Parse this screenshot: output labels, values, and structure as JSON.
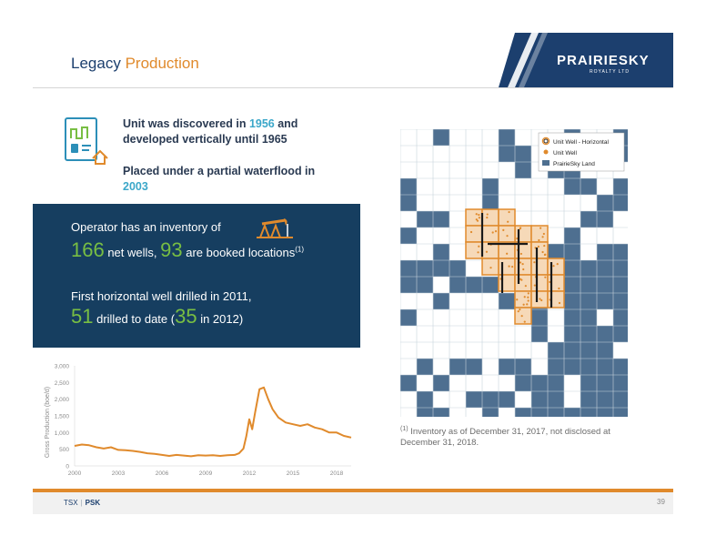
{
  "header": {
    "title_main": "Legacy",
    "title_accent": "Production",
    "logo_text": "PRAIRIESKY",
    "logo_sub": "ROYALTY LTD"
  },
  "intro": {
    "line1_a": "Unit was discovered in ",
    "line1_year": "1956",
    "line1_b": " and developed vertically until ",
    "line1_year2": "1965",
    "line2_a": "Placed under a partial waterflood in ",
    "line2_year": "2003"
  },
  "panel": {
    "l1": "Operator has an inventory of",
    "l2_num1": "166",
    "l2_a": " net wells, ",
    "l2_num2": "93",
    "l2_b": " are booked locations",
    "l2_sup": "(1)",
    "l3": "First horizontal well drilled in 2011,",
    "l4_num1": "51",
    "l4_a": " drilled to date (",
    "l4_num2": "35",
    "l4_b": " in 2012)"
  },
  "map": {
    "legend": [
      "Unit Well - Horizontal",
      "Unit Well",
      "PrairieSky Land"
    ],
    "colors": {
      "land": "#4e6f90",
      "grid": "#c7d2dc",
      "well": "#e08a2c",
      "horizontal": "#e08a2c"
    }
  },
  "footnote": {
    "sup": "(1)",
    "text": " Inventory as of December 31, 2017, not disclosed at December 31, 2018."
  },
  "chart_data": {
    "type": "line",
    "ylabel": "Gross Production (boe/d)",
    "ylim": [
      0,
      3000
    ],
    "yticks": [
      "0",
      "500",
      "1,000",
      "1,500",
      "2,000",
      "2,500",
      "3,000"
    ],
    "xlim": [
      2000,
      2019
    ],
    "xticks": [
      "2000",
      "2003",
      "2006",
      "2009",
      "2012",
      "2015",
      "2018"
    ],
    "color": "#e08a2c",
    "series": [
      {
        "x": [
          2000,
          2000.5,
          2001,
          2001.5,
          2002,
          2002.5,
          2003,
          2003.5,
          2004,
          2004.5,
          2005,
          2005.5,
          2006,
          2006.5,
          2007,
          2007.5,
          2008,
          2008.5,
          2009,
          2009.5,
          2010,
          2010.5,
          2011,
          2011.3,
          2011.6,
          2011.8,
          2012,
          2012.2,
          2012.4,
          2012.7,
          2013,
          2013.3,
          2013.6,
          2014,
          2014.5,
          2015,
          2015.5,
          2016,
          2016.5,
          2017,
          2017.5,
          2018,
          2018.5,
          2019
        ],
        "y": [
          600,
          640,
          620,
          560,
          520,
          560,
          480,
          470,
          450,
          420,
          380,
          360,
          330,
          300,
          330,
          310,
          290,
          320,
          310,
          320,
          300,
          320,
          330,
          380,
          520,
          900,
          1400,
          1100,
          1600,
          2300,
          2350,
          2000,
          1700,
          1450,
          1300,
          1250,
          1200,
          1250,
          1150,
          1100,
          1000,
          1000,
          900,
          850
        ]
      }
    ]
  },
  "footer": {
    "ticker_a": "TSX",
    "ticker_sep": "|",
    "ticker_b": "PSK",
    "page": "39"
  }
}
